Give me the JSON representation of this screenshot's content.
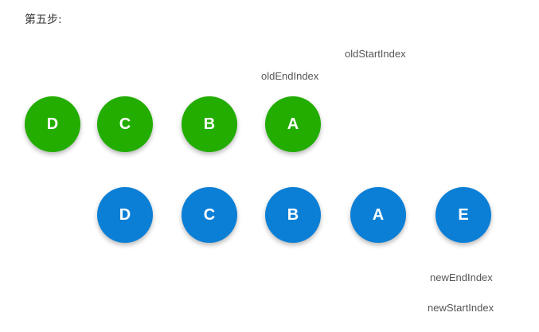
{
  "step_title": "第五步:",
  "colors": {
    "old_node": "#22ad00",
    "new_node": "#0b7fd6"
  },
  "old_nodes": [
    "D",
    "C",
    "B",
    "A"
  ],
  "new_nodes": [
    "D",
    "C",
    "B",
    "A",
    "E"
  ],
  "labels": {
    "old_start_index": "oldStartIndex",
    "old_end_index": "oldEndIndex",
    "new_end_index": "newEndIndex",
    "new_start_index": "newStartIndex"
  }
}
